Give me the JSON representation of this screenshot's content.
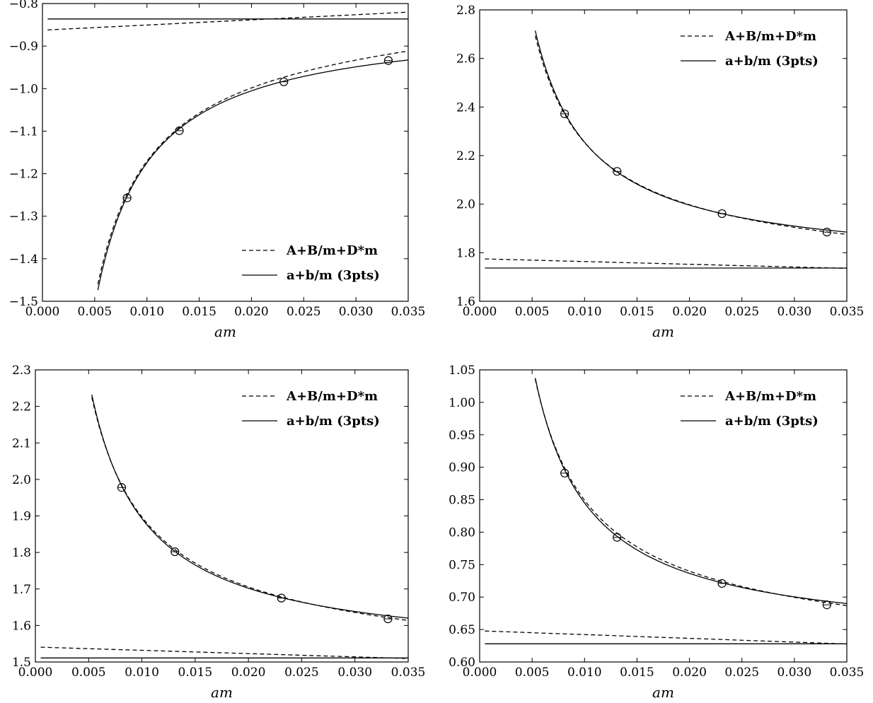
{
  "chart_data": [
    {
      "type": "line",
      "xlabel": "am",
      "xlim": [
        0.0,
        0.035
      ],
      "ylim": [
        -1.5,
        -0.8
      ],
      "xticks": [
        "0.000",
        "0.005",
        "0.010",
        "0.015",
        "0.020",
        "0.025",
        "0.030",
        "0.035"
      ],
      "yticks": [
        "−1.5",
        "−1.4",
        "−1.3",
        "−1.2",
        "−1.1",
        "−1.0",
        "−0.9",
        "−0.8"
      ],
      "legend_position": "lower-right",
      "points": {
        "x": [
          0.0081,
          0.0131,
          0.0231,
          0.0331
        ],
        "y": [
          -1.257,
          -1.099,
          -0.984,
          -0.934
        ]
      },
      "series": [
        {
          "name": "A+B/m+D*m",
          "style": "dashed",
          "curve": {
            "A": -0.8626,
            "B": -0.0032,
            "D": 1.21
          },
          "baseline": {
            "A": -0.8626,
            "D": 1.21
          }
        },
        {
          "name": "a+b/m (3pts)",
          "style": "solid",
          "curve": {
            "a": -0.8362,
            "b": -0.00338
          },
          "baseline": {
            "a": -0.8362
          }
        }
      ]
    },
    {
      "type": "line",
      "xlabel": "am",
      "xlim": [
        0.0,
        0.035
      ],
      "ylim": [
        1.6,
        2.8
      ],
      "xticks": [
        "0.000",
        "0.005",
        "0.010",
        "0.015",
        "0.020",
        "0.025",
        "0.030",
        "0.035"
      ],
      "yticks": [
        "1.6",
        "1.8",
        "2.0",
        "2.2",
        "2.4",
        "2.6",
        "2.8"
      ],
      "legend_position": "top-right",
      "points": {
        "x": [
          0.0081,
          0.0131,
          0.0231,
          0.0331
        ],
        "y": [
          2.372,
          2.135,
          1.961,
          1.885
        ]
      },
      "series": [
        {
          "name": "A+B/m+D*m",
          "style": "dashed",
          "curve": {
            "A": 1.775,
            "B": 0.0049,
            "D": -1.13
          },
          "baseline": {
            "A": 1.775,
            "D": -1.13
          }
        },
        {
          "name": "a+b/m (3pts)",
          "style": "solid",
          "curve": {
            "a": 1.737,
            "b": 0.00518
          },
          "baseline": {
            "a": 1.737
          }
        }
      ]
    },
    {
      "type": "line",
      "xlabel": "am",
      "xlim": [
        0.0,
        0.035
      ],
      "ylim": [
        1.5,
        2.3
      ],
      "xticks": [
        "0.000",
        "0.005",
        "0.010",
        "0.015",
        "0.020",
        "0.025",
        "0.030",
        "0.035"
      ],
      "yticks": [
        "1.5",
        "1.6",
        "1.7",
        "1.8",
        "1.9",
        "2.0",
        "2.1",
        "2.2",
        "2.3"
      ],
      "legend_position": "top-right",
      "points": {
        "x": [
          0.0081,
          0.0131,
          0.0231,
          0.0331
        ],
        "y": [
          1.978,
          1.802,
          1.675,
          1.618
        ]
      },
      "series": [
        {
          "name": "A+B/m+D*m",
          "style": "dashed",
          "curve": {
            "A": 1.541,
            "B": 0.00365,
            "D": -0.9
          },
          "baseline": {
            "A": 1.541,
            "D": -0.9
          }
        },
        {
          "name": "a+b/m (3pts)",
          "style": "solid",
          "curve": {
            "a": 1.511,
            "b": 0.00382
          },
          "baseline": {
            "a": 1.511
          }
        }
      ]
    },
    {
      "type": "line",
      "xlabel": "am",
      "xlim": [
        0.0,
        0.035
      ],
      "ylim": [
        0.6,
        1.05
      ],
      "xticks": [
        "0.000",
        "0.005",
        "0.010",
        "0.015",
        "0.020",
        "0.025",
        "0.030",
        "0.035"
      ],
      "yticks": [
        "0.60",
        "0.65",
        "0.70",
        "0.75",
        "0.80",
        "0.85",
        "0.90",
        "0.95",
        "1.00",
        "1.05"
      ],
      "legend_position": "top-right",
      "points": {
        "x": [
          0.0081,
          0.0131,
          0.0231,
          0.0331
        ],
        "y": [
          0.891,
          0.792,
          0.721,
          0.688
        ]
      },
      "series": [
        {
          "name": "A+B/m+D*m",
          "style": "dashed",
          "curve": {
            "A": 0.648,
            "B": 0.00207,
            "D": -0.58
          },
          "baseline": {
            "A": 0.648,
            "D": -0.58
          }
        },
        {
          "name": "a+b/m (3pts)",
          "style": "solid",
          "curve": {
            "a": 0.628,
            "b": 0.00217
          },
          "baseline": {
            "a": 0.628
          }
        }
      ]
    }
  ]
}
